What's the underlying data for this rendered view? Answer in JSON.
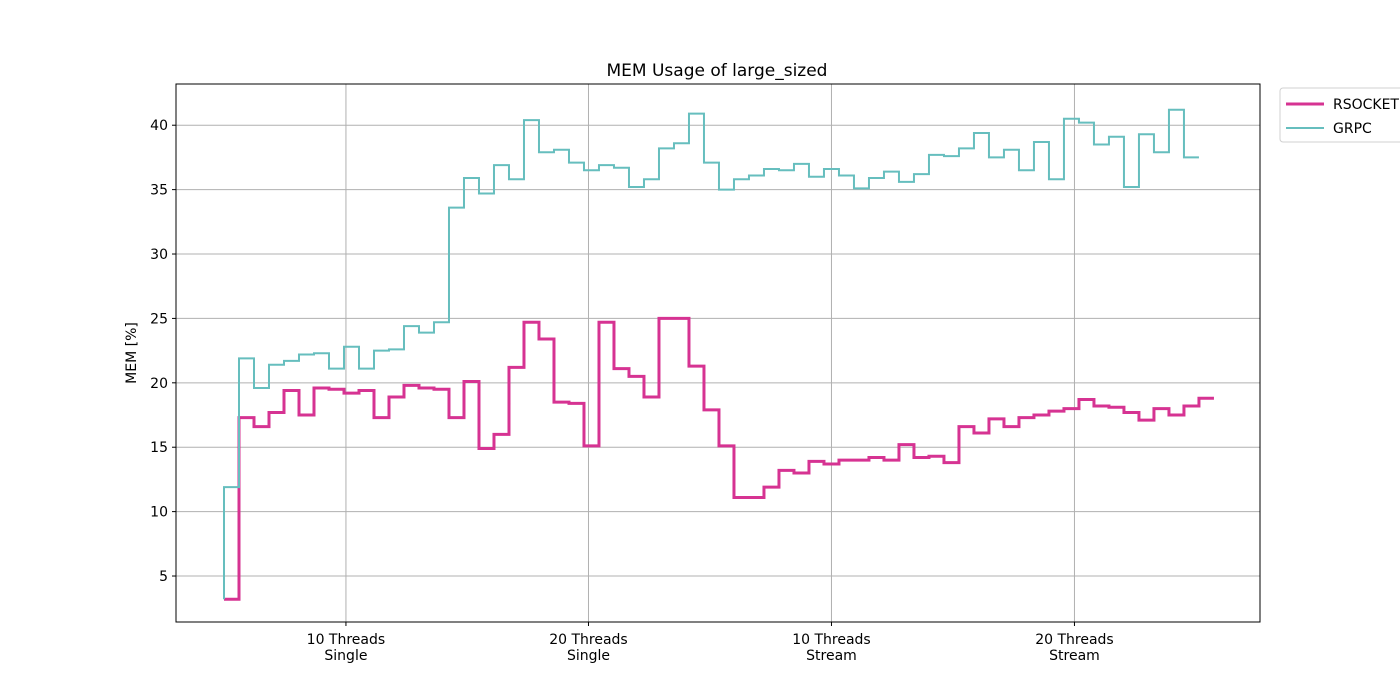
{
  "chart_data": {
    "type": "line",
    "step": "pre",
    "grid": true,
    "legend": "outside upper right",
    "title": "MEM Usage of large_sized",
    "y_label": "MEM [%]",
    "xlim": [
      -3.2,
      69.07
    ],
    "ylim": [
      1.43,
      43.2
    ],
    "xticks": [
      {
        "value": 8.13,
        "label": "10 Threads\nSingle"
      },
      {
        "value": 24.3,
        "label": "20 Threads\nSingle"
      },
      {
        "value": 40.5,
        "label": "10 Threads\nStream"
      },
      {
        "value": 56.7,
        "label": "20 Threads\nStream"
      }
    ],
    "yticks": [
      5,
      10,
      15,
      20,
      25,
      30,
      35,
      40
    ],
    "series": [
      {
        "name": "RSOCKET",
        "color": "#d63392",
        "width": 3,
        "x": [
          0,
          1,
          2,
          3,
          4,
          5,
          6,
          7,
          8,
          9,
          10,
          11,
          12,
          13,
          14,
          15,
          16,
          17,
          18,
          19,
          20,
          21,
          22,
          23,
          24,
          25,
          26,
          27,
          28,
          29,
          30,
          31,
          32,
          33,
          34,
          35,
          36,
          37,
          38,
          39,
          40,
          41,
          42,
          43,
          44,
          45,
          46,
          47,
          48,
          49,
          50,
          51,
          52,
          53,
          54,
          55,
          56,
          57,
          58,
          59,
          60,
          61,
          62,
          63,
          64,
          65,
          66
        ],
        "values": [
          3.2,
          3.2,
          17.3,
          16.6,
          17.7,
          19.4,
          17.5,
          19.6,
          19.5,
          19.2,
          19.4,
          17.3,
          18.9,
          19.8,
          19.6,
          19.5,
          17.3,
          20.1,
          14.9,
          16.0,
          21.2,
          24.7,
          23.4,
          18.5,
          18.4,
          15.1,
          24.7,
          21.1,
          20.5,
          18.9,
          25.0,
          25.0,
          21.3,
          17.9,
          15.1,
          11.1,
          11.1,
          11.9,
          13.2,
          13.0,
          13.9,
          13.7,
          14.0,
          14.0,
          14.2,
          14.0,
          15.2,
          14.2,
          14.3,
          13.8,
          16.6,
          16.1,
          17.2,
          16.6,
          17.3,
          17.5,
          17.8,
          18.0,
          18.7,
          18.2,
          18.1,
          17.7,
          17.1,
          18.0,
          17.5,
          18.2,
          18.8
        ]
      },
      {
        "name": "GRPC",
        "color": "#66bebe",
        "width": 2,
        "x": [
          0,
          1,
          2,
          3,
          4,
          5,
          6,
          7,
          8,
          9,
          10,
          11,
          12,
          13,
          14,
          15,
          16,
          17,
          18,
          19,
          20,
          21,
          22,
          23,
          24,
          25,
          26,
          27,
          28,
          29,
          30,
          31,
          32,
          33,
          34,
          35,
          36,
          37,
          38,
          39,
          40,
          41,
          42,
          43,
          44,
          45,
          46,
          47,
          48,
          49,
          50,
          51,
          52,
          53,
          54,
          55,
          56,
          57,
          58,
          59,
          60,
          61,
          62,
          63,
          64,
          65
        ],
        "values": [
          3.2,
          11.9,
          21.9,
          19.6,
          21.4,
          21.7,
          22.2,
          22.3,
          21.1,
          22.8,
          21.1,
          22.5,
          22.6,
          24.4,
          23.9,
          24.7,
          33.6,
          35.9,
          34.7,
          36.9,
          35.8,
          40.4,
          37.9,
          38.1,
          37.1,
          36.5,
          36.9,
          36.7,
          35.2,
          35.8,
          38.2,
          38.6,
          40.9,
          37.1,
          35.0,
          35.8,
          36.1,
          36.6,
          36.5,
          37.0,
          36.0,
          36.6,
          36.1,
          35.1,
          35.9,
          36.4,
          35.6,
          36.2,
          37.7,
          37.6,
          38.2,
          39.4,
          37.5,
          38.1,
          36.5,
          38.7,
          35.8,
          40.5,
          40.2,
          38.5,
          39.1,
          35.2,
          39.3,
          37.9,
          41.2,
          37.5
        ]
      }
    ]
  }
}
